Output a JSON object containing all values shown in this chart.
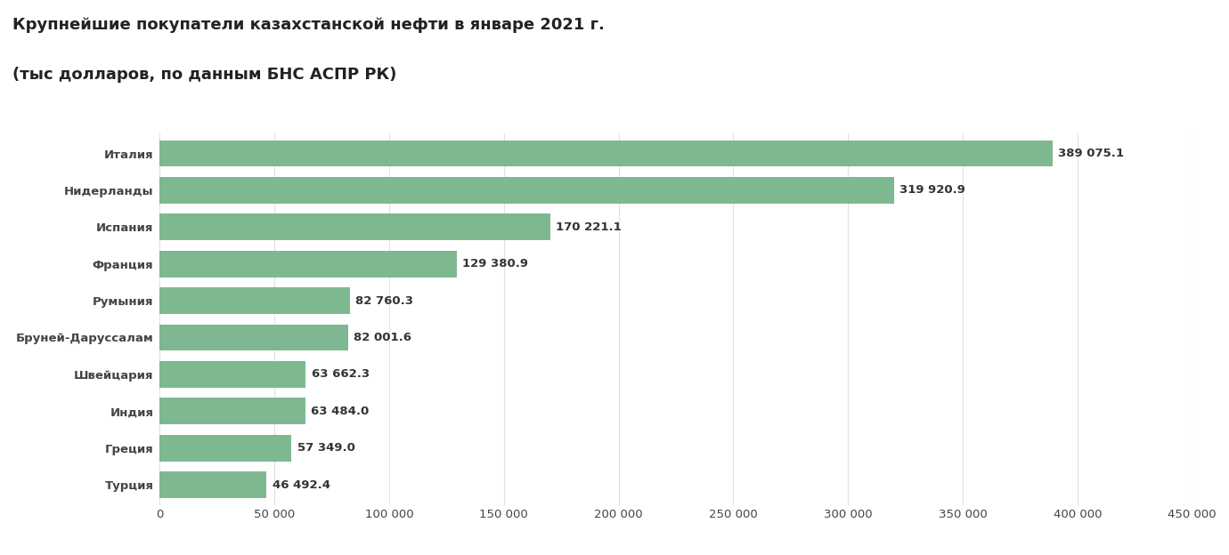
{
  "title_line1": "Крупнейшие покупатели казахстанской нефти в январе 2021 г.",
  "title_line2": "(тыс долларов, по данным БНС АСПР РК)",
  "categories": [
    "Италия",
    "Нидерланды",
    "Испания",
    "Франция",
    "Румыния",
    "Бруней-Даруссалам",
    "Швейцария",
    "Индия",
    "Греция",
    "Турция"
  ],
  "values": [
    389075.1,
    319920.9,
    170221.1,
    129380.9,
    82760.3,
    82001.6,
    63662.3,
    63484.0,
    57349.0,
    46492.4
  ],
  "labels": [
    "389 075.1",
    "319 920.9",
    "170 221.1",
    "129 380.9",
    "82 760.3",
    "82 001.6",
    "63 662.3",
    "63 484.0",
    "57 349.0",
    "46 492.4"
  ],
  "bar_color": "#7EB891",
  "background_color": "#ffffff",
  "xlim": [
    0,
    450000
  ],
  "xticks": [
    0,
    50000,
    100000,
    150000,
    200000,
    250000,
    300000,
    350000,
    400000,
    450000
  ],
  "xtick_labels": [
    "0",
    "50 000",
    "100 000",
    "150 000",
    "200 000",
    "250 000",
    "300 000",
    "350 000",
    "400 000",
    "450 000"
  ],
  "title_fontsize": 13,
  "label_fontsize": 9.5,
  "tick_fontsize": 9.5,
  "bar_height": 0.72
}
